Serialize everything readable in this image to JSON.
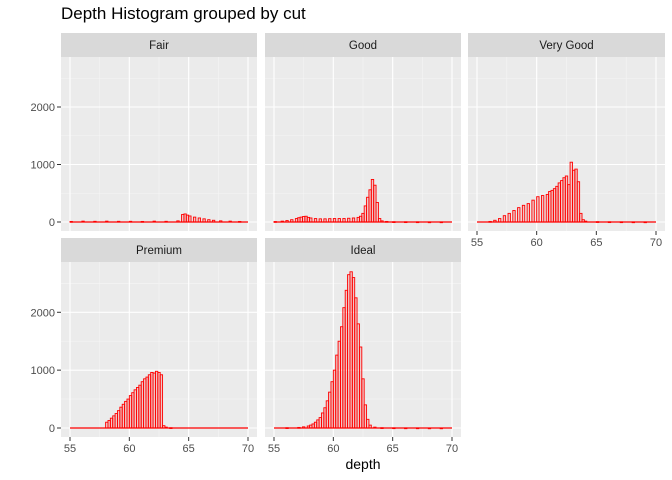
{
  "chart_data": {
    "type": "bar",
    "title": "Depth Histogram grouped by cut",
    "xlabel": "depth",
    "ylabel": "",
    "xlim": [
      55,
      70
    ],
    "ylim": [
      0,
      2800
    ],
    "x_ticks": [
      55,
      60,
      65,
      70
    ],
    "y_ticks": [
      0,
      1000,
      2000
    ],
    "bin_width": 0.2,
    "bar_fill": "#ff0000",
    "bar_outline": "#cc0000",
    "panel_background": "#ebebeb",
    "strip_background": "#d9d9d9",
    "grid": true,
    "facets": [
      {
        "name": "Fair",
        "bins": [
          {
            "x": 55.0,
            "count": 10
          },
          {
            "x": 56.0,
            "count": 15
          },
          {
            "x": 57.0,
            "count": 12
          },
          {
            "x": 58.0,
            "count": 15
          },
          {
            "x": 59.0,
            "count": 12
          },
          {
            "x": 60.0,
            "count": 12
          },
          {
            "x": 61.0,
            "count": 10
          },
          {
            "x": 62.0,
            "count": 15
          },
          {
            "x": 63.0,
            "count": 12
          },
          {
            "x": 64.0,
            "count": 20
          },
          {
            "x": 64.4,
            "count": 130
          },
          {
            "x": 64.6,
            "count": 140
          },
          {
            "x": 64.8,
            "count": 120
          },
          {
            "x": 65.0,
            "count": 105
          },
          {
            "x": 65.4,
            "count": 85
          },
          {
            "x": 65.8,
            "count": 70
          },
          {
            "x": 66.2,
            "count": 55
          },
          {
            "x": 66.6,
            "count": 40
          },
          {
            "x": 67.0,
            "count": 30
          },
          {
            "x": 67.6,
            "count": 20
          },
          {
            "x": 68.4,
            "count": 15
          },
          {
            "x": 69.2,
            "count": 10
          }
        ]
      },
      {
        "name": "Good",
        "bins": [
          {
            "x": 55.0,
            "count": 8
          },
          {
            "x": 55.6,
            "count": 15
          },
          {
            "x": 56.0,
            "count": 25
          },
          {
            "x": 56.4,
            "count": 40
          },
          {
            "x": 56.8,
            "count": 60
          },
          {
            "x": 57.0,
            "count": 75
          },
          {
            "x": 57.2,
            "count": 85
          },
          {
            "x": 57.4,
            "count": 95
          },
          {
            "x": 57.6,
            "count": 100
          },
          {
            "x": 57.8,
            "count": 80
          },
          {
            "x": 58.0,
            "count": 70
          },
          {
            "x": 58.4,
            "count": 60
          },
          {
            "x": 58.8,
            "count": 55
          },
          {
            "x": 59.2,
            "count": 55
          },
          {
            "x": 59.6,
            "count": 58
          },
          {
            "x": 60.0,
            "count": 60
          },
          {
            "x": 60.4,
            "count": 60
          },
          {
            "x": 60.8,
            "count": 60
          },
          {
            "x": 61.2,
            "count": 65
          },
          {
            "x": 61.6,
            "count": 70
          },
          {
            "x": 62.0,
            "count": 80
          },
          {
            "x": 62.2,
            "count": 100
          },
          {
            "x": 62.4,
            "count": 150
          },
          {
            "x": 62.6,
            "count": 280
          },
          {
            "x": 62.8,
            "count": 430
          },
          {
            "x": 63.0,
            "count": 560
          },
          {
            "x": 63.2,
            "count": 740
          },
          {
            "x": 63.4,
            "count": 640
          },
          {
            "x": 63.6,
            "count": 340
          },
          {
            "x": 63.8,
            "count": 60
          },
          {
            "x": 64.0,
            "count": 20
          },
          {
            "x": 64.4,
            "count": 10
          },
          {
            "x": 65.0,
            "count": 5
          },
          {
            "x": 66.0,
            "count": 4
          },
          {
            "x": 67.0,
            "count": 3
          },
          {
            "x": 68.0,
            "count": 2
          },
          {
            "x": 69.0,
            "count": 2
          }
        ]
      },
      {
        "name": "Very Good",
        "bins": [
          {
            "x": 56.0,
            "count": 10
          },
          {
            "x": 56.4,
            "count": 30
          },
          {
            "x": 56.8,
            "count": 60
          },
          {
            "x": 57.2,
            "count": 110
          },
          {
            "x": 57.6,
            "count": 150
          },
          {
            "x": 58.0,
            "count": 200
          },
          {
            "x": 58.4,
            "count": 250
          },
          {
            "x": 58.8,
            "count": 290
          },
          {
            "x": 59.2,
            "count": 320
          },
          {
            "x": 59.6,
            "count": 380
          },
          {
            "x": 60.0,
            "count": 440
          },
          {
            "x": 60.4,
            "count": 460
          },
          {
            "x": 60.8,
            "count": 480
          },
          {
            "x": 61.0,
            "count": 530
          },
          {
            "x": 61.2,
            "count": 550
          },
          {
            "x": 61.4,
            "count": 580
          },
          {
            "x": 61.6,
            "count": 620
          },
          {
            "x": 61.8,
            "count": 680
          },
          {
            "x": 62.0,
            "count": 720
          },
          {
            "x": 62.2,
            "count": 770
          },
          {
            "x": 62.4,
            "count": 800
          },
          {
            "x": 62.6,
            "count": 650
          },
          {
            "x": 62.8,
            "count": 1040
          },
          {
            "x": 63.0,
            "count": 900
          },
          {
            "x": 63.2,
            "count": 920
          },
          {
            "x": 63.4,
            "count": 700
          },
          {
            "x": 63.6,
            "count": 150
          },
          {
            "x": 63.8,
            "count": 40
          },
          {
            "x": 64.0,
            "count": 15
          },
          {
            "x": 65.0,
            "count": 6
          },
          {
            "x": 66.0,
            "count": 4
          },
          {
            "x": 67.0,
            "count": 3
          },
          {
            "x": 68.0,
            "count": 2
          },
          {
            "x": 69.0,
            "count": 2
          }
        ]
      },
      {
        "name": "Premium",
        "bins": [
          {
            "x": 58.0,
            "count": 100
          },
          {
            "x": 58.2,
            "count": 130
          },
          {
            "x": 58.4,
            "count": 170
          },
          {
            "x": 58.6,
            "count": 210
          },
          {
            "x": 58.8,
            "count": 250
          },
          {
            "x": 59.0,
            "count": 300
          },
          {
            "x": 59.2,
            "count": 360
          },
          {
            "x": 59.4,
            "count": 410
          },
          {
            "x": 59.6,
            "count": 460
          },
          {
            "x": 59.8,
            "count": 500
          },
          {
            "x": 60.0,
            "count": 560
          },
          {
            "x": 60.2,
            "count": 610
          },
          {
            "x": 60.4,
            "count": 660
          },
          {
            "x": 60.6,
            "count": 700
          },
          {
            "x": 60.8,
            "count": 740
          },
          {
            "x": 61.0,
            "count": 800
          },
          {
            "x": 61.2,
            "count": 850
          },
          {
            "x": 61.4,
            "count": 880
          },
          {
            "x": 61.6,
            "count": 920
          },
          {
            "x": 61.8,
            "count": 960
          },
          {
            "x": 62.0,
            "count": 950
          },
          {
            "x": 62.2,
            "count": 980
          },
          {
            "x": 62.4,
            "count": 960
          },
          {
            "x": 62.6,
            "count": 920
          },
          {
            "x": 62.8,
            "count": 40
          },
          {
            "x": 63.0,
            "count": 15
          },
          {
            "x": 63.4,
            "count": 5
          }
        ]
      },
      {
        "name": "Ideal",
        "bins": [
          {
            "x": 56.0,
            "count": 5
          },
          {
            "x": 57.0,
            "count": 10
          },
          {
            "x": 57.4,
            "count": 20
          },
          {
            "x": 57.8,
            "count": 35
          },
          {
            "x": 58.0,
            "count": 50
          },
          {
            "x": 58.2,
            "count": 70
          },
          {
            "x": 58.4,
            "count": 100
          },
          {
            "x": 58.6,
            "count": 140
          },
          {
            "x": 58.8,
            "count": 180
          },
          {
            "x": 59.0,
            "count": 260
          },
          {
            "x": 59.2,
            "count": 350
          },
          {
            "x": 59.4,
            "count": 470
          },
          {
            "x": 59.6,
            "count": 620
          },
          {
            "x": 59.8,
            "count": 800
          },
          {
            "x": 60.0,
            "count": 1000
          },
          {
            "x": 60.2,
            "count": 1260
          },
          {
            "x": 60.4,
            "count": 1500
          },
          {
            "x": 60.6,
            "count": 1750
          },
          {
            "x": 60.8,
            "count": 2080
          },
          {
            "x": 61.0,
            "count": 2380
          },
          {
            "x": 61.2,
            "count": 2650
          },
          {
            "x": 61.4,
            "count": 2700
          },
          {
            "x": 61.6,
            "count": 2600
          },
          {
            "x": 61.8,
            "count": 2250
          },
          {
            "x": 62.0,
            "count": 1800
          },
          {
            "x": 62.2,
            "count": 1400
          },
          {
            "x": 62.4,
            "count": 850
          },
          {
            "x": 62.6,
            "count": 400
          },
          {
            "x": 62.8,
            "count": 150
          },
          {
            "x": 63.0,
            "count": 50
          },
          {
            "x": 63.4,
            "count": 15
          },
          {
            "x": 64.0,
            "count": 5
          },
          {
            "x": 65.0,
            "count": 3
          },
          {
            "x": 66.0,
            "count": 2
          },
          {
            "x": 67.0,
            "count": 2
          },
          {
            "x": 68.0,
            "count": 1
          },
          {
            "x": 69.0,
            "count": 1
          }
        ]
      }
    ]
  }
}
